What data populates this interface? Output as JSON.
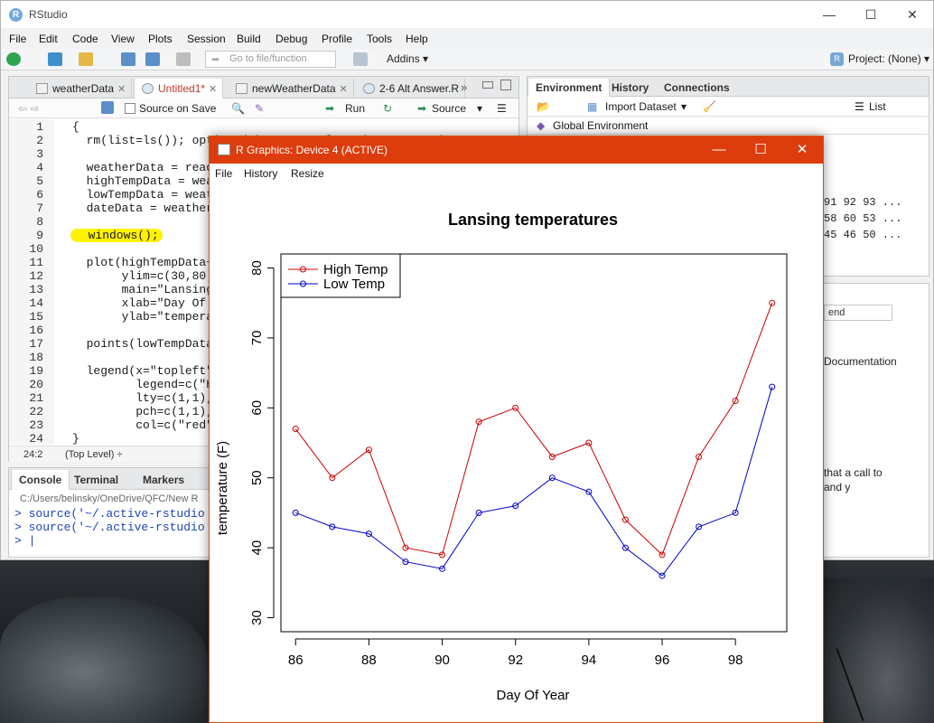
{
  "app": {
    "title": "RStudio",
    "menu": [
      "File",
      "Edit",
      "Code",
      "View",
      "Plots",
      "Session",
      "Build",
      "Debug",
      "Profile",
      "Tools",
      "Help"
    ],
    "goto_placeholder": "Go to file/function",
    "addins_label": "Addins",
    "project_label": "Project: (None)",
    "window_controls": {
      "minimize": "—",
      "maximize": "☐",
      "close": "✕"
    }
  },
  "source": {
    "tabs": [
      {
        "label": "weatherData",
        "active": false
      },
      {
        "label": "Untitled1*",
        "active": true
      },
      {
        "label": "newWeatherData",
        "active": false
      },
      {
        "label": "2-6 Alt Answer.R",
        "active": false
      }
    ],
    "tabs_overflow": "»",
    "toolbar": {
      "source_on_save": "Source on Save",
      "run": "Run",
      "source": "Source"
    },
    "lines": [
      {
        "n": "1",
        "text": "{"
      },
      {
        "n": "2",
        "text": "  rm(list=ls()); options(show.error.locations = TRUE);"
      },
      {
        "n": "3",
        "text": ""
      },
      {
        "n": "4",
        "text": "  weatherData = read."
      },
      {
        "n": "5",
        "text": "  highTempData = weat"
      },
      {
        "n": "6",
        "text": "  lowTempData = weath"
      },
      {
        "n": "7",
        "text": "  dateData = weatherD"
      },
      {
        "n": "8",
        "text": ""
      },
      {
        "n": "9",
        "text": "  windows();"
      },
      {
        "n": "10",
        "text": ""
      },
      {
        "n": "11",
        "text": "  plot(highTempData~d"
      },
      {
        "n": "12",
        "text": "       ylim=c(30,80),"
      },
      {
        "n": "13",
        "text": "       main=\"Lansing"
      },
      {
        "n": "14",
        "text": "       xlab=\"Day Of Y"
      },
      {
        "n": "15",
        "text": "       ylab=\"temperat"
      },
      {
        "n": "16",
        "text": ""
      },
      {
        "n": "17",
        "text": "  points(lowTempData~"
      },
      {
        "n": "18",
        "text": ""
      },
      {
        "n": "19",
        "text": "  legend(x=\"topleft\","
      },
      {
        "n": "20",
        "text": "         legend=c(\"Hi"
      },
      {
        "n": "21",
        "text": "         lty=c(1,1),"
      },
      {
        "n": "22",
        "text": "         pch=c(1,1),"
      },
      {
        "n": "23",
        "text": "         col=c(\"red\","
      },
      {
        "n": "24",
        "text": "}"
      }
    ],
    "status_position": "24:2",
    "status_scope": "(Top Level) ÷"
  },
  "console": {
    "tabs": [
      "Console",
      "Terminal",
      "Markers"
    ],
    "path": "C:/Users/belinsky/OneDrive/QFC/New R",
    "lines": [
      "> source('~/.active-rstudio",
      "> source('~/.active-rstudio",
      "> |"
    ]
  },
  "environment": {
    "tabs": [
      "Environment",
      "History",
      "Connections"
    ],
    "import_label": "Import Dataset",
    "list_label": "List",
    "global_env": "Global Environment",
    "rows": [
      "91 92 93 ...",
      "58 60 53 ...",
      "45 46 50 ..."
    ]
  },
  "help": {
    "search_value": "end",
    "doc_title": "Documentation",
    "text_lines": [
      "that a call to",
      "and y"
    ]
  },
  "graphics": {
    "window_title": "R Graphics: Device 4 (ACTIVE)",
    "menu": [
      "File",
      "History",
      "Resize"
    ],
    "window_controls": {
      "minimize": "—",
      "maximize": "☐",
      "close": "✕"
    }
  },
  "chart_data": {
    "type": "line",
    "title": "Lansing temperatures",
    "xlabel": "Day Of Year",
    "ylabel": "temperature (F)",
    "x": [
      86,
      87,
      88,
      89,
      90,
      91,
      92,
      93,
      94,
      95,
      96,
      97,
      98,
      99
    ],
    "xlim": [
      85.6,
      99.4
    ],
    "ylim": [
      28,
      82
    ],
    "x_ticks": [
      86,
      88,
      90,
      92,
      94,
      96,
      98
    ],
    "y_ticks": [
      30,
      40,
      50,
      60,
      70,
      80
    ],
    "grid": false,
    "legend_position": "top-left",
    "series": [
      {
        "name": "High Temp",
        "color": "#cc0000",
        "values": [
          57,
          50,
          54,
          40,
          39,
          58,
          60,
          53,
          55,
          44,
          39,
          53,
          61,
          75
        ]
      },
      {
        "name": "Low Temp",
        "color": "#0000cc",
        "values": [
          45,
          43,
          42,
          38,
          37,
          45,
          46,
          50,
          48,
          40,
          36,
          43,
          45,
          63
        ]
      }
    ]
  }
}
